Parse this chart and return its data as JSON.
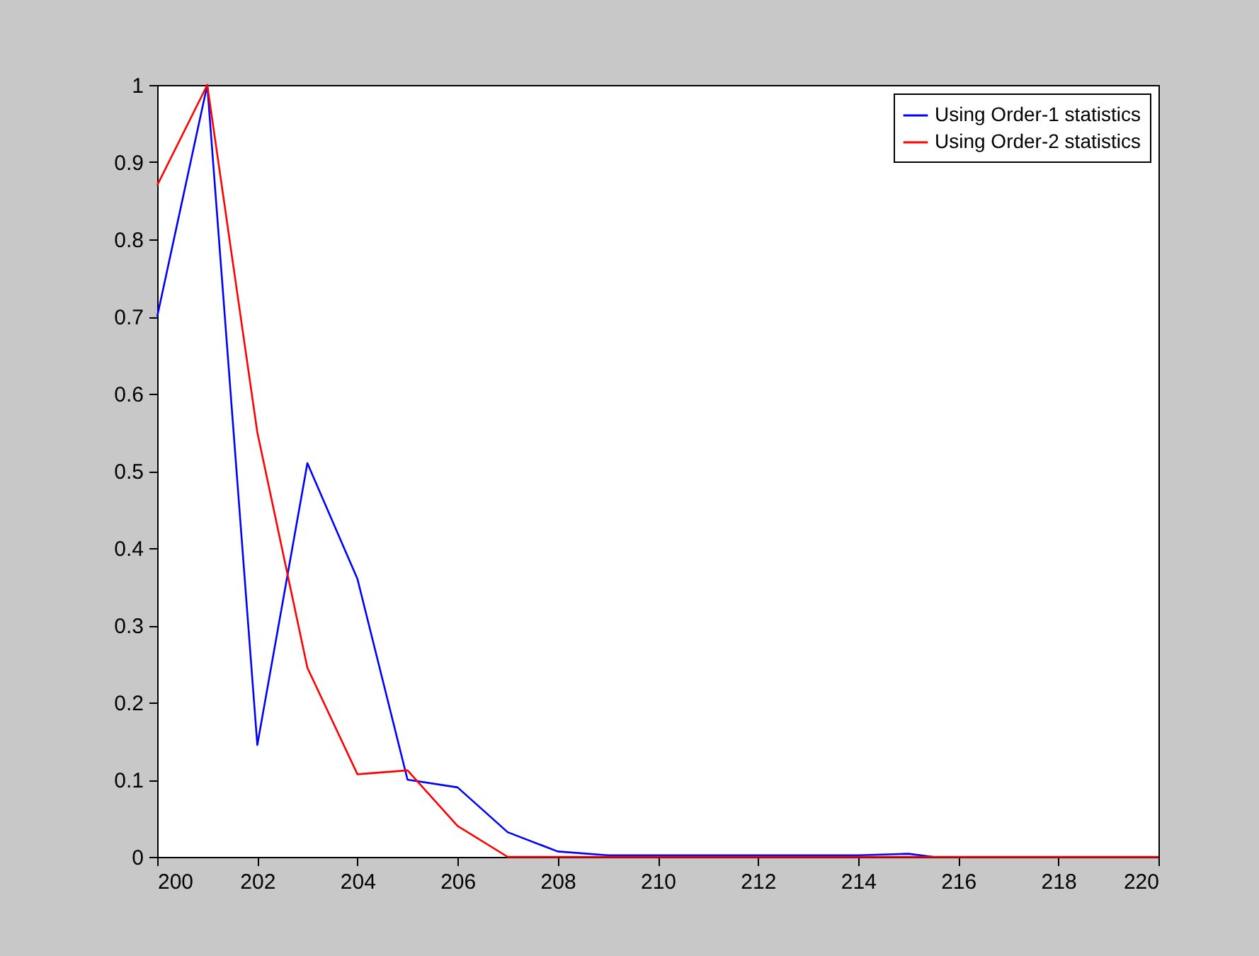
{
  "chart_data": {
    "type": "line",
    "xlim": [
      200,
      220
    ],
    "xticks": [
      200,
      202,
      204,
      206,
      208,
      210,
      212,
      214,
      216,
      218,
      220
    ],
    "ylim": [
      0,
      1
    ],
    "yticks": [
      0,
      0.1,
      0.2,
      0.3,
      0.4,
      0.5,
      0.6,
      0.7,
      0.8,
      0.9,
      1
    ],
    "grid": false,
    "legend": "top right",
    "marker": "none",
    "line_style": "solid",
    "series": [
      {
        "name": "Using Order-1 statistics",
        "color": "#0000ff",
        "x": [
          200,
          201,
          202,
          203,
          204,
          205,
          206,
          207,
          208,
          209,
          210,
          211,
          212,
          213,
          214,
          215,
          215.5
        ],
        "values": [
          0.7,
          1.0,
          0.145,
          0.51,
          0.36,
          0.1,
          0.09,
          0.032,
          0.007,
          0.002,
          0.002,
          0.002,
          0.002,
          0.002,
          0.002,
          0.004,
          0
        ]
      },
      {
        "name": "Using Order-2 statistics",
        "color": "#ff0000",
        "x": [
          200,
          201,
          202,
          203,
          204,
          205,
          206,
          207,
          220
        ],
        "values": [
          0.87,
          1.0,
          0.55,
          0.245,
          0.107,
          0.112,
          0.04,
          0,
          0
        ]
      }
    ]
  }
}
